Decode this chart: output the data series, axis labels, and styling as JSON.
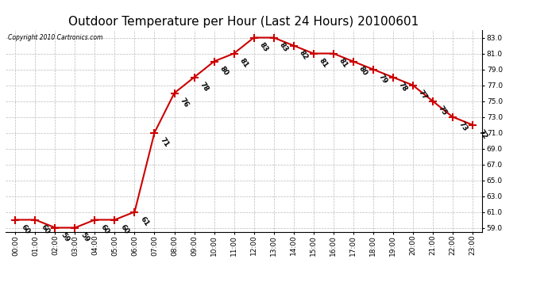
{
  "title": "Outdoor Temperature per Hour (Last 24 Hours) 20100601",
  "copyright_text": "Copyright 2010 Cartronics.com",
  "hours": [
    "00:00",
    "01:00",
    "02:00",
    "03:00",
    "04:00",
    "05:00",
    "06:00",
    "07:00",
    "08:00",
    "09:00",
    "10:00",
    "11:00",
    "12:00",
    "13:00",
    "14:00",
    "15:00",
    "16:00",
    "17:00",
    "18:00",
    "19:00",
    "20:00",
    "21:00",
    "22:00",
    "23:00"
  ],
  "temperatures": [
    60,
    60,
    59,
    59,
    60,
    60,
    61,
    71,
    76,
    78,
    80,
    81,
    83,
    83,
    82,
    81,
    81,
    80,
    79,
    78,
    77,
    75,
    73,
    72
  ],
  "ylim": [
    58.5,
    84.0
  ],
  "yticks": [
    59.0,
    61.0,
    63.0,
    65.0,
    67.0,
    69.0,
    71.0,
    73.0,
    75.0,
    77.0,
    79.0,
    81.0,
    83.0
  ],
  "line_color": "#cc0000",
  "marker": "+",
  "marker_size": 7,
  "marker_color": "#cc0000",
  "bg_color": "#ffffff",
  "grid_color": "#bbbbbb",
  "title_fontsize": 11,
  "label_fontsize": 6.5,
  "annotation_fontsize": 6.5,
  "annotation_rotation": -55
}
